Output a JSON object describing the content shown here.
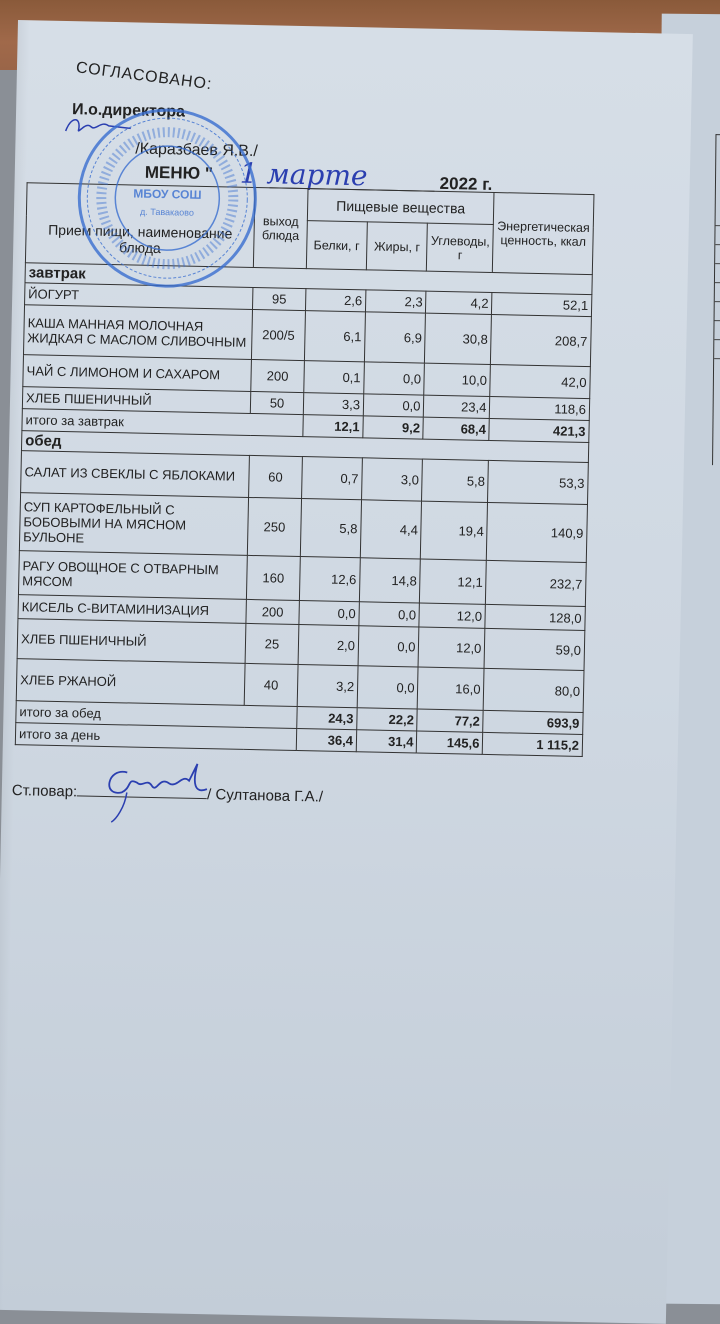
{
  "header": {
    "agreed": "СОГЛАСОВАНО:",
    "director_title": "И.о.директора",
    "director_name": "/Каразбаев Я.В./",
    "menu_label": "МЕНЮ \"",
    "date_day": "1",
    "date_month": "марте",
    "year": "2022 г."
  },
  "stamp": {
    "text": "МБОУ СОШ д. Тавакаово",
    "color": "#3a6fd0"
  },
  "table": {
    "columns": {
      "meal": "Прием пищи, наименование блюда",
      "yield": "выход блюда",
      "nutrients": "Пищевые вещества",
      "protein": "Белки, г",
      "fat": "Жиры, г",
      "carbs": "Углеводы, г",
      "energy": "Энергетическая ценность, ккал"
    },
    "breakfast": {
      "label": "завтрак",
      "rows": [
        {
          "name": "ЙОГУРТ",
          "yield": "95",
          "protein": "2,6",
          "fat": "2,3",
          "carbs": "4,2",
          "energy": "52,1"
        },
        {
          "name": "КАША МАННАЯ МОЛОЧНАЯ ЖИДКАЯ С МАСЛОМ СЛИВОЧНЫМ",
          "yield": "200/5",
          "protein": "6,1",
          "fat": "6,9",
          "carbs": "30,8",
          "energy": "208,7"
        },
        {
          "name": "ЧАЙ С ЛИМОНОМ И САХАРОМ",
          "yield": "200",
          "protein": "0,1",
          "fat": "0,0",
          "carbs": "10,0",
          "energy": "42,0"
        },
        {
          "name": "ХЛЕБ ПШЕНИЧНЫЙ",
          "yield": "50",
          "protein": "3,3",
          "fat": "0,0",
          "carbs": "23,4",
          "energy": "118,6"
        }
      ],
      "total": {
        "label": "итого за завтрак",
        "protein": "12,1",
        "fat": "9,2",
        "carbs": "68,4",
        "energy": "421,3"
      }
    },
    "lunch": {
      "label": "обед",
      "rows": [
        {
          "name": "САЛАТ ИЗ СВЕКЛЫ  С ЯБЛОКАМИ",
          "yield": "60",
          "protein": "0,7",
          "fat": "3,0",
          "carbs": "5,8",
          "energy": "53,3"
        },
        {
          "name": "СУП КАРТОФЕЛЬНЫЙ С БОБОВЫМИ НА МЯСНОМ БУЛЬОНЕ",
          "yield": "250",
          "protein": "5,8",
          "fat": "4,4",
          "carbs": "19,4",
          "energy": "140,9"
        },
        {
          "name": "РАГУ ОВОЩНОЕ С ОТВАРНЫМ  МЯСОМ",
          "yield": "160",
          "protein": "12,6",
          "fat": "14,8",
          "carbs": "12,1",
          "energy": "232,7"
        },
        {
          "name": "КИСЕЛЬ С-ВИТАМИНИЗАЦИЯ",
          "yield": "200",
          "protein": "0,0",
          "fat": "0,0",
          "carbs": "12,0",
          "energy": "128,0"
        },
        {
          "name": "ХЛЕБ ПШЕНИЧНЫЙ",
          "yield": "25",
          "protein": "2,0",
          "fat": "0,0",
          "carbs": "12,0",
          "energy": "59,0"
        },
        {
          "name": "ХЛЕБ РЖАНОЙ",
          "yield": "40",
          "protein": "3,2",
          "fat": "0,0",
          "carbs": "16,0",
          "energy": "80,0"
        }
      ],
      "total": {
        "label": "итого за обед",
        "protein": "24,3",
        "fat": "22,2",
        "carbs": "77,2",
        "energy": "693,9"
      }
    },
    "day_total": {
      "label": "итого за день",
      "protein": "36,4",
      "fat": "31,4",
      "carbs": "145,6",
      "energy": "1 115,2"
    }
  },
  "footer": {
    "cook_label": "Ст.повар:",
    "cook_name": "/ Султанова Г.А./"
  },
  "colors": {
    "ink_blue": "#2b3fb0",
    "paper": "#d3dbe5",
    "wood": "#9a6548"
  }
}
